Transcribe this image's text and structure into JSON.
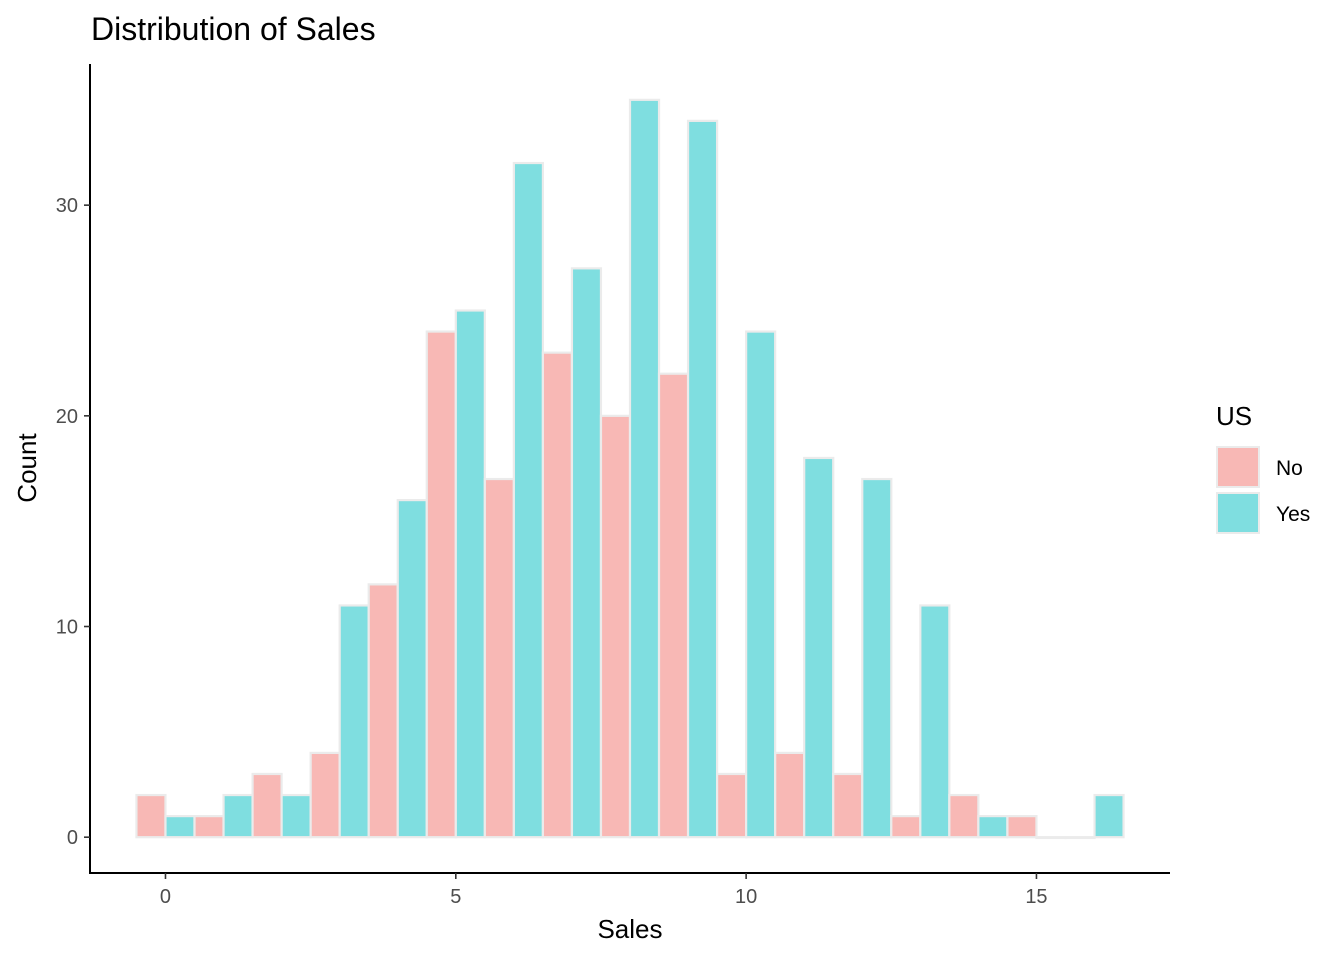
{
  "chart_data": {
    "type": "bar",
    "title": "Distribution of Sales",
    "xlabel": "Sales",
    "ylabel": "Count",
    "x_ticks": [
      0,
      5,
      10,
      15
    ],
    "y_ticks": [
      0,
      10,
      20,
      30
    ],
    "xlim": [
      -1.3,
      17.3
    ],
    "ylim": [
      -1.7,
      36.7
    ],
    "bin_width": 1,
    "bins": [
      0,
      1,
      2,
      3,
      4,
      5,
      6,
      7,
      8,
      9,
      10,
      11,
      12,
      13,
      14,
      15,
      16
    ],
    "series": [
      {
        "name": "No",
        "color": "#F8B8B5",
        "values": [
          2,
          1,
          3,
          4,
          12,
          24,
          17,
          23,
          20,
          22,
          3,
          4,
          3,
          1,
          2,
          1,
          0
        ]
      },
      {
        "name": "Yes",
        "color": "#7FDEE0",
        "values": [
          1,
          2,
          2,
          11,
          16,
          25,
          32,
          27,
          35,
          34,
          24,
          18,
          17,
          11,
          1,
          0,
          2
        ]
      }
    ],
    "bar_outline_color": "#EBEBEB",
    "grid": false,
    "legend": {
      "title": "US",
      "position": "right"
    }
  }
}
